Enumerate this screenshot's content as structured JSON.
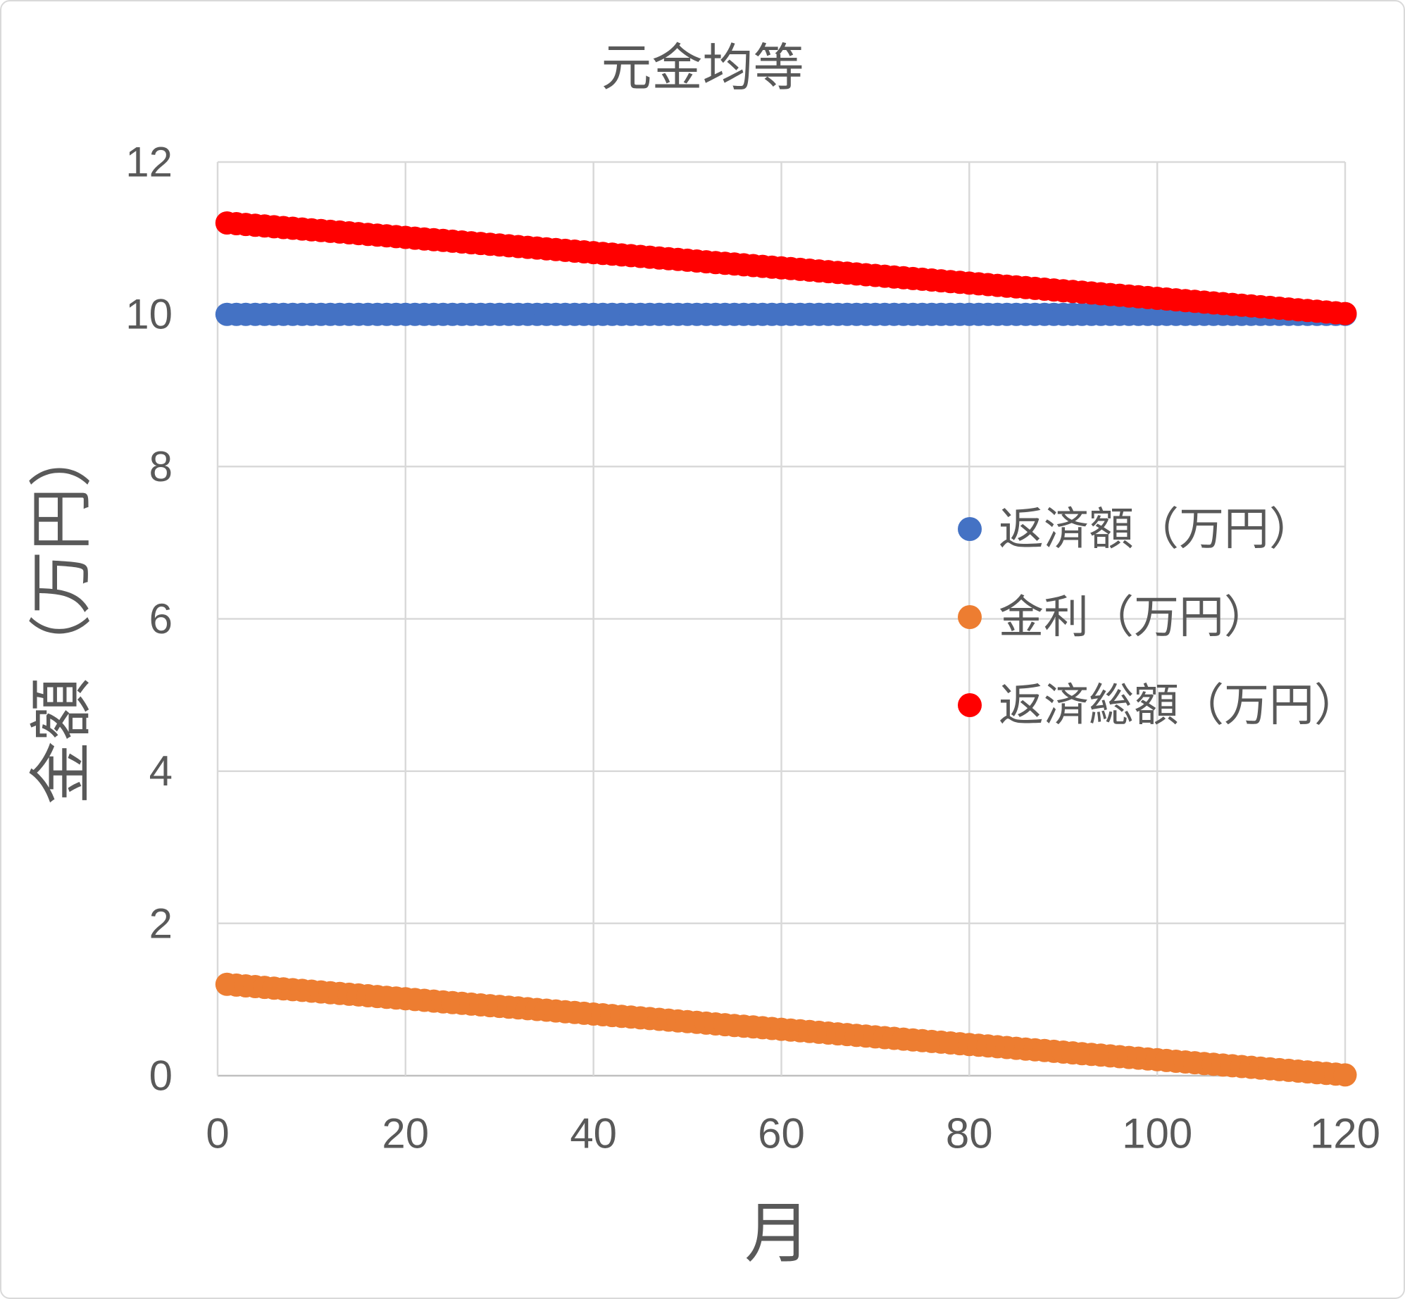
{
  "chart_data": {
    "type": "scatter",
    "title": "元金均等",
    "xlabel": "月",
    "ylabel": "金額（万円）",
    "xlim": [
      0,
      120
    ],
    "ylim": [
      0,
      12
    ],
    "xticks": [
      0,
      20,
      40,
      60,
      80,
      100,
      120
    ],
    "yticks": [
      0,
      2,
      4,
      6,
      8,
      10,
      12
    ],
    "grid": true,
    "legend_position": "inside-middle-right",
    "colors": {
      "gridline": "#D9D9D9",
      "axis_line": "#BFBFBF",
      "text": "#595959"
    },
    "x": [
      1,
      2,
      3,
      4,
      5,
      6,
      7,
      8,
      9,
      10,
      11,
      12,
      13,
      14,
      15,
      16,
      17,
      18,
      19,
      20,
      21,
      22,
      23,
      24,
      25,
      26,
      27,
      28,
      29,
      30,
      31,
      32,
      33,
      34,
      35,
      36,
      37,
      38,
      39,
      40,
      41,
      42,
      43,
      44,
      45,
      46,
      47,
      48,
      49,
      50,
      51,
      52,
      53,
      54,
      55,
      56,
      57,
      58,
      59,
      60,
      61,
      62,
      63,
      64,
      65,
      66,
      67,
      68,
      69,
      70,
      71,
      72,
      73,
      74,
      75,
      76,
      77,
      78,
      79,
      80,
      81,
      82,
      83,
      84,
      85,
      86,
      87,
      88,
      89,
      90,
      91,
      92,
      93,
      94,
      95,
      96,
      97,
      98,
      99,
      100,
      101,
      102,
      103,
      104,
      105,
      106,
      107,
      108,
      109,
      110,
      111,
      112,
      113,
      114,
      115,
      116,
      117,
      118,
      119,
      120
    ],
    "series": [
      {
        "id": "repayment",
        "name": "返済額（万円）",
        "color": "#4472C4",
        "values": [
          10,
          10,
          10,
          10,
          10,
          10,
          10,
          10,
          10,
          10,
          10,
          10,
          10,
          10,
          10,
          10,
          10,
          10,
          10,
          10,
          10,
          10,
          10,
          10,
          10,
          10,
          10,
          10,
          10,
          10,
          10,
          10,
          10,
          10,
          10,
          10,
          10,
          10,
          10,
          10,
          10,
          10,
          10,
          10,
          10,
          10,
          10,
          10,
          10,
          10,
          10,
          10,
          10,
          10,
          10,
          10,
          10,
          10,
          10,
          10,
          10,
          10,
          10,
          10,
          10,
          10,
          10,
          10,
          10,
          10,
          10,
          10,
          10,
          10,
          10,
          10,
          10,
          10,
          10,
          10,
          10,
          10,
          10,
          10,
          10,
          10,
          10,
          10,
          10,
          10,
          10,
          10,
          10,
          10,
          10,
          10,
          10,
          10,
          10,
          10,
          10,
          10,
          10,
          10,
          10,
          10,
          10,
          10,
          10,
          10,
          10,
          10,
          10,
          10,
          10,
          10,
          10,
          10,
          10,
          10
        ]
      },
      {
        "id": "interest",
        "name": "金利（万円）",
        "color": "#ED7D31",
        "values": [
          1.2,
          1.19,
          1.18,
          1.17,
          1.16,
          1.15,
          1.14,
          1.13,
          1.12,
          1.11,
          1.1,
          1.09,
          1.08,
          1.07,
          1.06,
          1.05,
          1.04,
          1.03,
          1.02,
          1.01,
          1.0,
          0.99,
          0.98,
          0.97,
          0.96,
          0.95,
          0.94,
          0.93,
          0.92,
          0.91,
          0.9,
          0.89,
          0.88,
          0.87,
          0.86,
          0.85,
          0.84,
          0.83,
          0.82,
          0.81,
          0.8,
          0.79,
          0.78,
          0.77,
          0.76,
          0.75,
          0.74,
          0.73,
          0.72,
          0.71,
          0.7,
          0.69,
          0.68,
          0.67,
          0.66,
          0.65,
          0.64,
          0.63,
          0.62,
          0.61,
          0.6,
          0.59,
          0.58,
          0.57,
          0.56,
          0.55,
          0.54,
          0.53,
          0.52,
          0.51,
          0.5,
          0.49,
          0.48,
          0.47,
          0.46,
          0.45,
          0.44,
          0.43,
          0.42,
          0.41,
          0.4,
          0.39,
          0.38,
          0.37,
          0.36,
          0.35,
          0.34,
          0.33,
          0.32,
          0.31,
          0.3,
          0.29,
          0.28,
          0.27,
          0.26,
          0.25,
          0.24,
          0.23,
          0.22,
          0.21,
          0.2,
          0.19,
          0.18,
          0.17,
          0.16,
          0.15,
          0.14,
          0.13,
          0.12,
          0.11,
          0.1,
          0.09,
          0.08,
          0.07,
          0.06,
          0.05,
          0.04,
          0.03,
          0.02,
          0.01
        ]
      },
      {
        "id": "total-repayment",
        "name": "返済総額（万円）",
        "color": "#FF0000",
        "values": [
          11.2,
          11.19,
          11.18,
          11.17,
          11.16,
          11.15,
          11.14,
          11.13,
          11.12,
          11.11,
          11.1,
          11.09,
          11.08,
          11.07,
          11.06,
          11.05,
          11.04,
          11.03,
          11.02,
          11.01,
          11.0,
          10.99,
          10.98,
          10.97,
          10.96,
          10.95,
          10.94,
          10.93,
          10.92,
          10.91,
          10.9,
          10.89,
          10.88,
          10.87,
          10.86,
          10.85,
          10.84,
          10.83,
          10.82,
          10.81,
          10.8,
          10.79,
          10.78,
          10.77,
          10.76,
          10.75,
          10.74,
          10.73,
          10.72,
          10.71,
          10.7,
          10.69,
          10.68,
          10.67,
          10.66,
          10.65,
          10.64,
          10.63,
          10.62,
          10.61,
          10.6,
          10.59,
          10.58,
          10.57,
          10.56,
          10.55,
          10.54,
          10.53,
          10.52,
          10.51,
          10.5,
          10.49,
          10.48,
          10.47,
          10.46,
          10.45,
          10.44,
          10.43,
          10.42,
          10.41,
          10.4,
          10.39,
          10.38,
          10.37,
          10.36,
          10.35,
          10.34,
          10.33,
          10.32,
          10.31,
          10.3,
          10.29,
          10.28,
          10.27,
          10.26,
          10.25,
          10.24,
          10.23,
          10.22,
          10.21,
          10.2,
          10.19,
          10.18,
          10.17,
          10.16,
          10.15,
          10.14,
          10.13,
          10.12,
          10.11,
          10.1,
          10.09,
          10.08,
          10.07,
          10.06,
          10.05,
          10.04,
          10.03,
          10.02,
          10.01
        ]
      }
    ]
  }
}
